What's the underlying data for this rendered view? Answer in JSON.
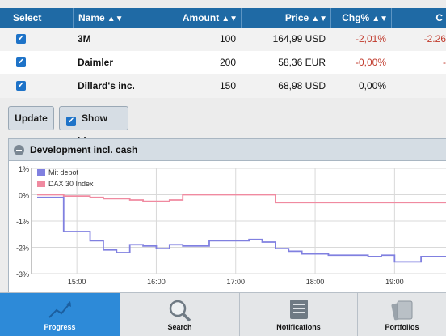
{
  "table": {
    "headers": {
      "select": "Select",
      "name": "Name",
      "amount": "Amount",
      "price": "Price",
      "chg": "Chg%",
      "extra": "C"
    },
    "rows": [
      {
        "name": "3M",
        "amount": "100",
        "price": "164,99 USD",
        "chg": "-2,01%",
        "extra": "-2.26"
      },
      {
        "name": "Daimler",
        "amount": "200",
        "price": "58,36 EUR",
        "chg": "-0,00%",
        "extra": "-"
      },
      {
        "name": "Dillard's inc.",
        "amount": "150",
        "price": "68,98 USD",
        "chg": "0,00%",
        "extra": ""
      }
    ]
  },
  "buttons": {
    "update": "Update",
    "show_sold": "Show sold"
  },
  "panel": {
    "title": "Development incl. cash"
  },
  "chart_data": {
    "type": "line",
    "x": [
      "14:30",
      "14:40",
      "14:50",
      "15:00",
      "15:10",
      "15:20",
      "15:30",
      "15:40",
      "15:50",
      "16:00",
      "16:10",
      "16:20",
      "16:30",
      "16:40",
      "16:50",
      "17:00",
      "17:10",
      "17:20",
      "17:30",
      "17:40",
      "17:50",
      "18:00",
      "18:10",
      "18:20",
      "18:30",
      "18:40",
      "18:50",
      "19:00",
      "19:10",
      "19:20",
      "19:30"
    ],
    "series": [
      {
        "name": "Mit depot",
        "color": "#8080e0",
        "values": [
          -0.1,
          -0.1,
          -1.4,
          -1.4,
          -1.75,
          -2.1,
          -2.2,
          -1.9,
          -1.95,
          -2.05,
          -1.9,
          -1.95,
          -1.95,
          -1.75,
          -1.75,
          -1.75,
          -1.7,
          -1.8,
          -2.05,
          -2.15,
          -2.25,
          -2.25,
          -2.3,
          -2.3,
          -2.3,
          -2.35,
          -2.3,
          -2.55,
          -2.55,
          -2.35,
          -2.35
        ]
      },
      {
        "name": "DAX 30 Index",
        "color": "#f08aa0",
        "values": [
          0.0,
          0.0,
          -0.05,
          -0.05,
          -0.1,
          -0.15,
          -0.15,
          -0.2,
          -0.25,
          -0.25,
          -0.2,
          0.0,
          0.0,
          0.0,
          0.0,
          0.0,
          0.0,
          0.0,
          -0.3,
          -0.3,
          -0.3,
          -0.3,
          -0.3,
          -0.3,
          -0.3,
          -0.3,
          -0.3,
          -0.3,
          -0.3,
          -0.3,
          -0.3
        ]
      }
    ],
    "yticks": [
      "1%",
      "0%",
      "-1%",
      "-2%",
      "-3%"
    ],
    "xticks": [
      "15:00",
      "16:00",
      "17:00",
      "18:00",
      "19:00"
    ],
    "ylim": [
      -3,
      1
    ]
  },
  "nav": [
    {
      "label": "Progress",
      "icon": "chart-trend-icon",
      "active": true
    },
    {
      "label": "Search",
      "icon": "magnifier-icon",
      "active": false
    },
    {
      "label": "Notifications",
      "icon": "notifications-list-icon",
      "active": false
    },
    {
      "label": "Portfolios",
      "icon": "portfolios-icon",
      "active": false
    }
  ]
}
